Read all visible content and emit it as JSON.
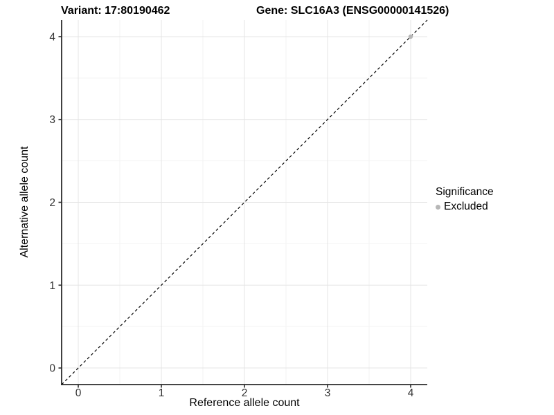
{
  "titles": {
    "left": "Variant: 17:80190462",
    "right": "Gene: SLC16A3 (ENSG00000141526)"
  },
  "colors": {
    "background": "#ffffff",
    "grid_major": "#e4e4e4",
    "grid_minor": "#f3f3f3",
    "axis_line": "#2b2b2b",
    "tick_label": "#333333",
    "reference_line": "#000000",
    "excluded_point": "#b7b7b7"
  },
  "chart_data": {
    "type": "scatter",
    "title": "Variant: 17:80190462    Gene: SLC16A3 (ENSG00000141526)",
    "xlabel": "Reference allele count",
    "ylabel": "Alternative allele count",
    "xlim": [
      -0.2,
      4.2
    ],
    "ylim": [
      -0.2,
      4.2
    ],
    "x_ticks": [
      0,
      1,
      2,
      3,
      4
    ],
    "y_ticks": [
      0,
      1,
      2,
      3,
      4
    ],
    "minor_x": [
      0.5,
      1.5,
      2.5,
      3.5
    ],
    "minor_y": [
      0.5,
      1.5,
      2.5,
      3.5
    ],
    "grid": true,
    "legend": {
      "title": "Significance",
      "position": "right",
      "entries": [
        "Excluded"
      ]
    },
    "series": [
      {
        "name": "Excluded",
        "color": "#b7b7b7",
        "points": [
          {
            "x": 4,
            "y": 4
          }
        ]
      }
    ],
    "reference_line": {
      "equation": "y = x",
      "style": "dashed",
      "color": "#000000",
      "from": [
        -0.2,
        -0.2
      ],
      "to": [
        4.2,
        4.2
      ]
    }
  }
}
